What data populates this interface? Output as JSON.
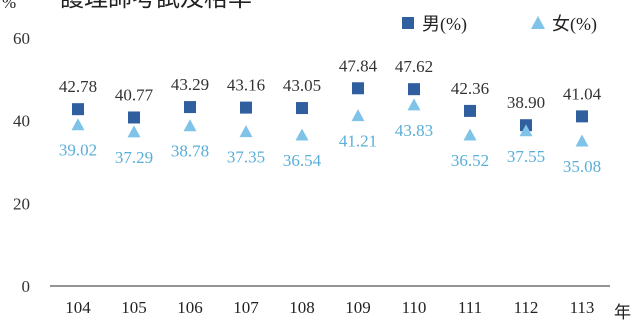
{
  "chart_data": {
    "type": "scatter",
    "title": "護理師考試及格率",
    "y_unit": "%",
    "x_unit": "年",
    "categories": [
      "104",
      "105",
      "106",
      "107",
      "108",
      "109",
      "110",
      "111",
      "112",
      "113"
    ],
    "ylim": [
      0,
      60
    ],
    "yticks": [
      0,
      20,
      40,
      60
    ],
    "grid": false,
    "legend_position": "top-right",
    "series": [
      {
        "name": "男(%)",
        "marker": "square",
        "color": "#2f5f9e",
        "label_color": "#333333",
        "values": [
          42.78,
          40.77,
          43.29,
          43.16,
          43.05,
          47.84,
          47.62,
          42.36,
          38.9,
          41.04
        ],
        "labels": [
          "42.78",
          "40.77",
          "43.29",
          "43.16",
          "43.05",
          "47.84",
          "47.62",
          "42.36",
          "38.90",
          "41.04"
        ]
      },
      {
        "name": "女(%)",
        "marker": "triangle",
        "color": "#7fc3e8",
        "label_color": "#5aaed8",
        "values": [
          39.02,
          37.29,
          38.78,
          37.35,
          36.54,
          41.21,
          43.83,
          36.52,
          37.55,
          35.08
        ],
        "labels": [
          "39.02",
          "37.29",
          "38.78",
          "37.35",
          "36.54",
          "41.21",
          "43.83",
          "36.52",
          "37.55",
          "35.08"
        ]
      }
    ]
  }
}
